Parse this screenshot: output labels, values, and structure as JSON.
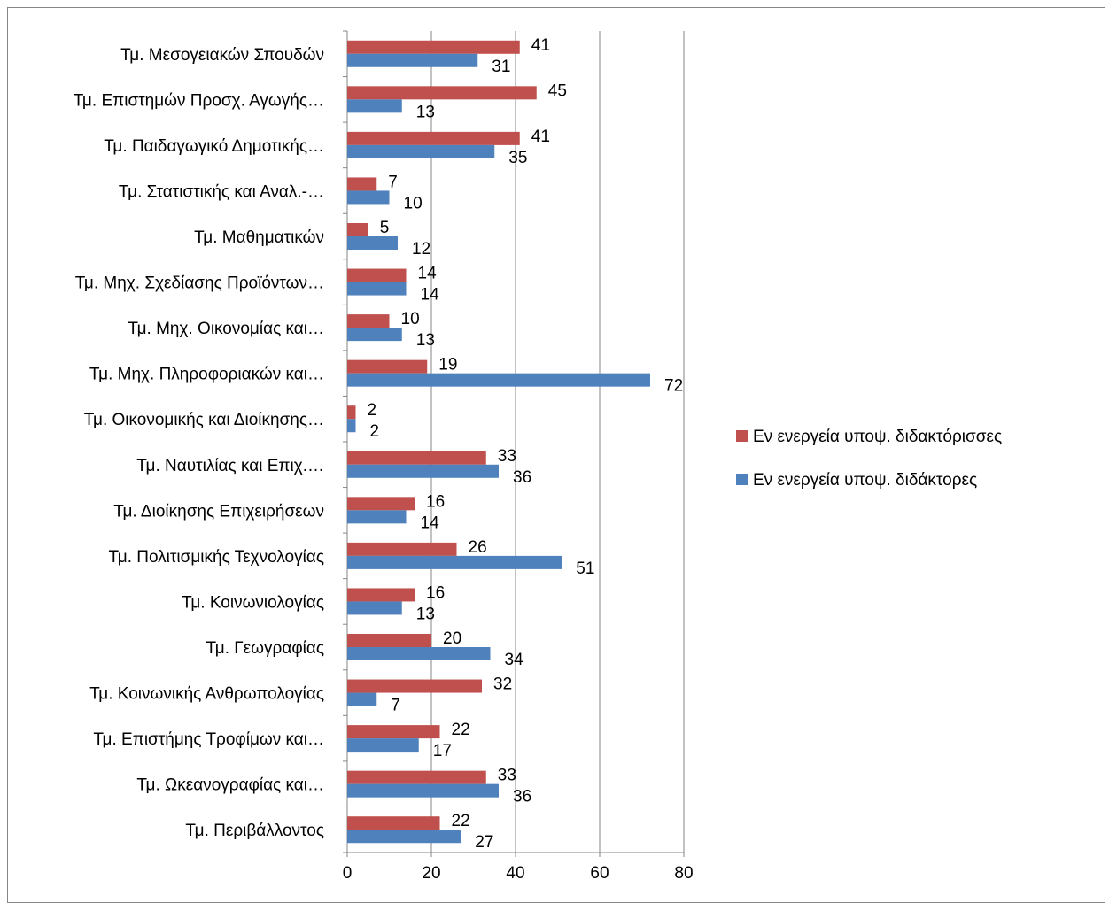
{
  "chart_data": {
    "type": "bar",
    "orientation": "horizontal",
    "categories": [
      "Τμ. Μεσογειακών Σπουδών",
      "Τμ. Επιστημών Προσχ. Αγωγής…",
      "Τμ. Παιδαγωγικό Δημοτικής…",
      "Τμ. Στατιστικής και Αναλ.-…",
      "Τμ. Μαθηματικών",
      "Τμ. Μηχ. Σχεδίασης Προϊόντων…",
      "Τμ. Μηχ. Οικονομίας και…",
      "Τμ. Μηχ. Πληροφοριακών και…",
      "Τμ. Οικονομικής και Διοίκησης…",
      "Τμ. Ναυτιλίας και Επιχ.…",
      "Τμ. Διοίκησης Επιχειρήσεων",
      "Τμ. Πολιτισμικής Τεχνολογίας",
      "Τμ. Κοινωνιολογίας",
      "Τμ. Γεωγραφίας",
      "Τμ. Κοινωνικής Ανθρωπολογίας",
      "Τμ. Επιστήμης Τροφίμων και…",
      "Τμ. Ωκεανογραφίας και…",
      "Τμ. Περιβάλλοντος"
    ],
    "series": [
      {
        "name": "Εν ενεργεία υποψ. διδακτόρισσες",
        "color": "#C0504D",
        "values": [
          41,
          45,
          41,
          7,
          5,
          14,
          10,
          19,
          2,
          33,
          16,
          26,
          16,
          20,
          32,
          22,
          33,
          22
        ]
      },
      {
        "name": "Εν ενεργεία υποψ. διδάκτορες",
        "color": "#4F81BD",
        "values": [
          31,
          13,
          35,
          10,
          12,
          14,
          13,
          72,
          2,
          36,
          14,
          51,
          13,
          34,
          7,
          17,
          36,
          27
        ]
      }
    ],
    "xlim": [
      0,
      80
    ],
    "xticks": [
      "0",
      "20",
      "40",
      "60",
      "80"
    ],
    "grid": true,
    "legend_position": "right",
    "data_labels": true
  }
}
